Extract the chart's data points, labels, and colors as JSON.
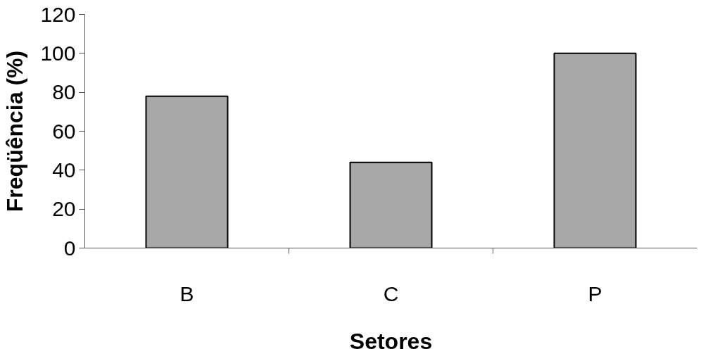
{
  "chart_data": {
    "type": "bar",
    "xlabel": "Setores",
    "ylabel": "Freqüência (%)",
    "categories": [
      "B",
      "C",
      "P"
    ],
    "series": [
      {
        "color": "#a8a8a8",
        "values": [
          78,
          44,
          100
        ]
      }
    ],
    "ylim": [
      0,
      120
    ],
    "yticks": [
      0,
      20,
      40,
      60,
      80,
      100,
      120
    ],
    "grid": false
  }
}
